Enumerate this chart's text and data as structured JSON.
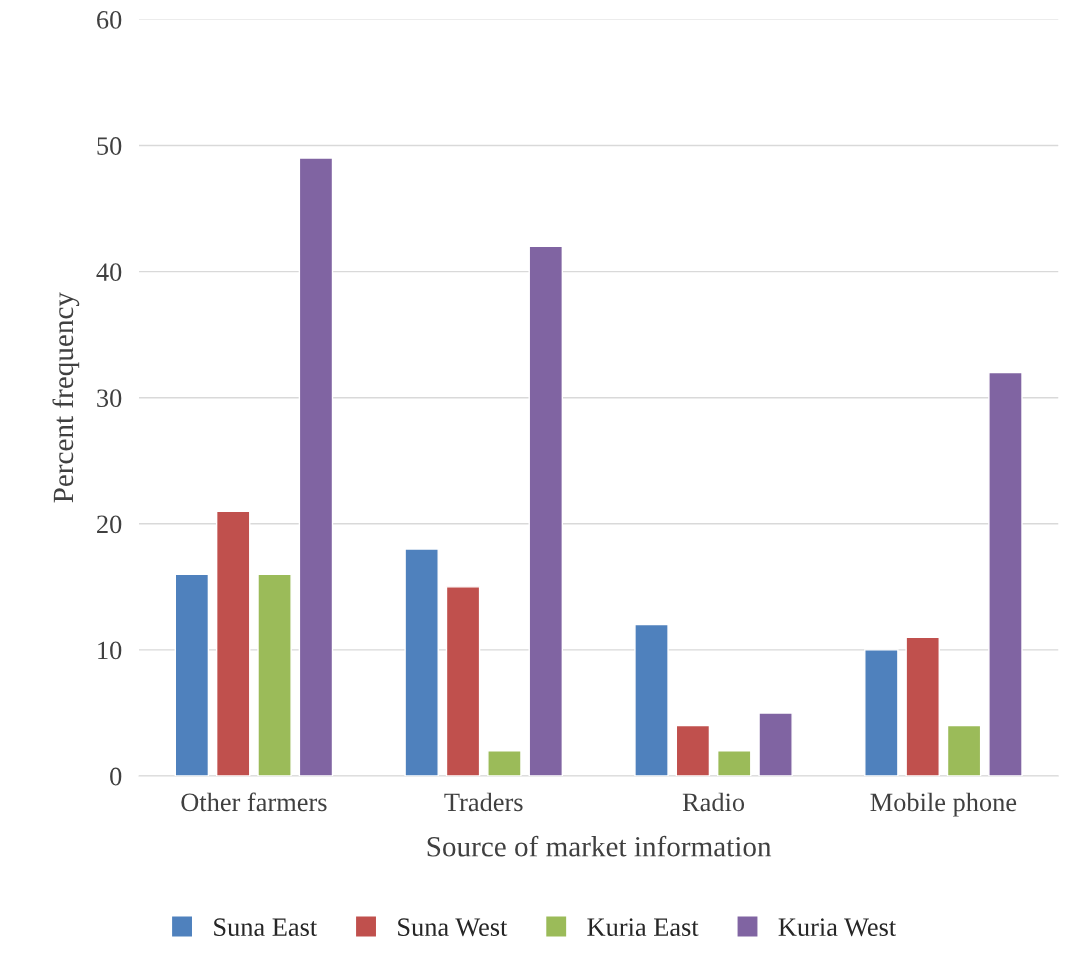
{
  "chart_data": {
    "type": "bar",
    "xlabel": "Source of market information",
    "ylabel": "Percent frequency",
    "categories": [
      "Other farmers",
      "Traders",
      "Radio",
      "Mobile phone"
    ],
    "series": [
      {
        "name": "Suna East",
        "color": "#4f81bd",
        "values": [
          16,
          18,
          12,
          10
        ]
      },
      {
        "name": "Suna West",
        "color": "#c0504d",
        "values": [
          21,
          15,
          4,
          11
        ]
      },
      {
        "name": "Kuria East",
        "color": "#9bbb59",
        "values": [
          16,
          2,
          2,
          4
        ]
      },
      {
        "name": "Kuria West",
        "color": "#8064a2",
        "values": [
          49,
          42,
          5,
          32
        ]
      }
    ],
    "ylim": [
      0,
      60
    ],
    "yticks": [
      0,
      10,
      20,
      30,
      40,
      50,
      60
    ],
    "grid": "y",
    "legend": "bottom"
  }
}
